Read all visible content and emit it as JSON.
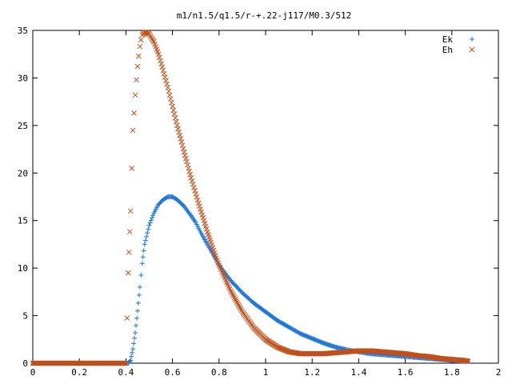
{
  "chart_data": {
    "type": "scatter",
    "title": "m1/n1.5/q1.5/r-+.22-j117/M0.3/512",
    "xlabel": "",
    "ylabel": "",
    "xlim": [
      0,
      2
    ],
    "ylim": [
      0,
      35
    ],
    "x_ticks": [
      "0",
      "0.2",
      "0.4",
      "0.6",
      "0.8",
      "1",
      "1.2",
      "1.4",
      "1.6",
      "1.8",
      "2"
    ],
    "y_ticks": [
      "0",
      "5",
      "10",
      "15",
      "20",
      "25",
      "30",
      "35"
    ],
    "grid": false,
    "legend_position": "top-right",
    "series": [
      {
        "name": "Ek",
        "marker": "plus",
        "color": "#1f77d8",
        "points": [
          [
            0.0,
            0
          ],
          [
            0.05,
            0
          ],
          [
            0.1,
            0
          ],
          [
            0.15,
            0
          ],
          [
            0.2,
            0
          ],
          [
            0.25,
            0
          ],
          [
            0.3,
            0
          ],
          [
            0.35,
            0
          ],
          [
            0.4,
            0
          ],
          [
            0.41,
            0
          ],
          [
            0.42,
            0.3
          ],
          [
            0.43,
            1.5
          ],
          [
            0.44,
            3.2
          ],
          [
            0.45,
            5.5
          ],
          [
            0.46,
            8.0
          ],
          [
            0.47,
            10.5
          ],
          [
            0.48,
            12.5
          ],
          [
            0.5,
            14.5
          ],
          [
            0.52,
            15.8
          ],
          [
            0.54,
            16.7
          ],
          [
            0.56,
            17.2
          ],
          [
            0.58,
            17.5
          ],
          [
            0.6,
            17.5
          ],
          [
            0.62,
            17.2
          ],
          [
            0.65,
            16.5
          ],
          [
            0.68,
            15.5
          ],
          [
            0.7,
            14.8
          ],
          [
            0.72,
            13.8
          ],
          [
            0.75,
            12.5
          ],
          [
            0.78,
            11.2
          ],
          [
            0.8,
            10.3
          ],
          [
            0.85,
            8.7
          ],
          [
            0.9,
            7.4
          ],
          [
            0.95,
            6.3
          ],
          [
            1.0,
            5.4
          ],
          [
            1.05,
            4.5
          ],
          [
            1.1,
            3.8
          ],
          [
            1.15,
            3.1
          ],
          [
            1.2,
            2.6
          ],
          [
            1.25,
            2.1
          ],
          [
            1.3,
            1.7
          ],
          [
            1.35,
            1.4
          ],
          [
            1.4,
            1.2
          ],
          [
            1.45,
            1.0
          ],
          [
            1.5,
            0.9
          ],
          [
            1.55,
            0.8
          ],
          [
            1.6,
            0.7
          ],
          [
            1.65,
            0.6
          ],
          [
            1.7,
            0.5
          ],
          [
            1.75,
            0.4
          ],
          [
            1.8,
            0.3
          ],
          [
            1.85,
            0.2
          ],
          [
            1.87,
            0.2
          ]
        ]
      },
      {
        "name": "Eh",
        "marker": "cross",
        "color": "#c0501a",
        "points": [
          [
            0.0,
            0
          ],
          [
            0.05,
            0
          ],
          [
            0.1,
            0
          ],
          [
            0.15,
            0
          ],
          [
            0.2,
            0
          ],
          [
            0.25,
            0
          ],
          [
            0.3,
            0
          ],
          [
            0.35,
            0
          ],
          [
            0.4,
            0
          ],
          [
            0.41,
            9.5
          ],
          [
            0.42,
            16.0
          ],
          [
            0.425,
            20.5
          ],
          [
            0.43,
            24.5
          ],
          [
            0.435,
            26.3
          ],
          [
            0.44,
            28.2
          ],
          [
            0.445,
            29.8
          ],
          [
            0.45,
            31.2
          ],
          [
            0.455,
            32.3
          ],
          [
            0.46,
            33.3
          ],
          [
            0.465,
            34.0
          ],
          [
            0.47,
            34.5
          ],
          [
            0.48,
            34.8
          ],
          [
            0.49,
            34.8
          ],
          [
            0.5,
            34.6
          ],
          [
            0.52,
            33.8
          ],
          [
            0.54,
            32.5
          ],
          [
            0.56,
            30.8
          ],
          [
            0.58,
            29.0
          ],
          [
            0.6,
            27.0
          ],
          [
            0.62,
            25.0
          ],
          [
            0.65,
            22.2
          ],
          [
            0.68,
            19.5
          ],
          [
            0.7,
            17.8
          ],
          [
            0.72,
            16.2
          ],
          [
            0.75,
            13.8
          ],
          [
            0.78,
            11.6
          ],
          [
            0.8,
            10.3
          ],
          [
            0.85,
            7.6
          ],
          [
            0.9,
            5.4
          ],
          [
            0.95,
            3.7
          ],
          [
            1.0,
            2.5
          ],
          [
            1.05,
            1.7
          ],
          [
            1.1,
            1.2
          ],
          [
            1.15,
            1.0
          ],
          [
            1.2,
            1.0
          ],
          [
            1.25,
            1.0
          ],
          [
            1.3,
            1.1
          ],
          [
            1.35,
            1.2
          ],
          [
            1.4,
            1.3
          ],
          [
            1.45,
            1.3
          ],
          [
            1.5,
            1.2
          ],
          [
            1.55,
            1.1
          ],
          [
            1.6,
            1.0
          ],
          [
            1.65,
            0.8
          ],
          [
            1.7,
            0.7
          ],
          [
            1.75,
            0.5
          ],
          [
            1.8,
            0.4
          ],
          [
            1.85,
            0.3
          ],
          [
            1.87,
            0.2
          ]
        ]
      }
    ]
  }
}
